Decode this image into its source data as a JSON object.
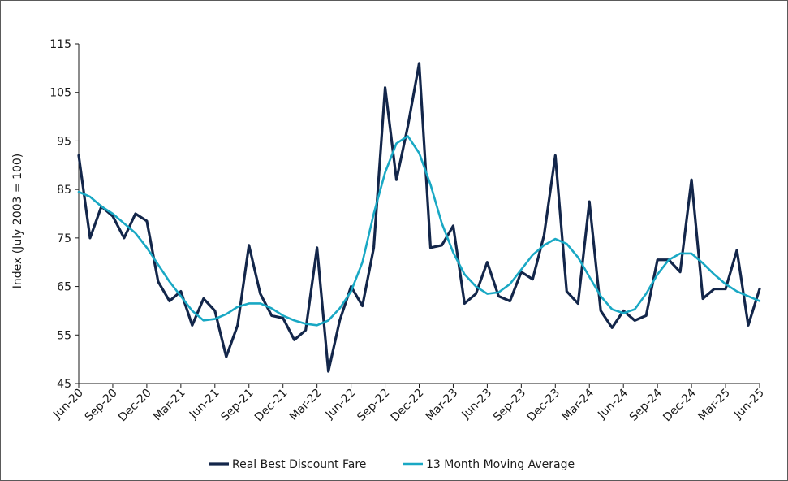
{
  "chart_data": {
    "type": "line",
    "title": "",
    "ylabel": "Index (July 2003 = 100)",
    "xlabel": "",
    "ylim": [
      45,
      115
    ],
    "yticks": [
      45,
      55,
      65,
      75,
      85,
      95,
      105,
      115
    ],
    "xtick_labels": [
      "Jun-20",
      "Sep-20",
      "Dec-20",
      "Mar-21",
      "Jun-21",
      "Sep-21",
      "Dec-21",
      "Mar-22",
      "Jun-22",
      "Sep-22",
      "Dec-22",
      "Mar-23",
      "Jun-23",
      "Sep-23",
      "Dec-23",
      "Mar-24",
      "Jun-24",
      "Sep-24",
      "Dec-24",
      "Mar-25",
      "Jun-25"
    ],
    "legend_position": "bottom",
    "series": [
      {
        "name": "Real Best Discount Fare",
        "color": "#13264a",
        "values": [
          92,
          75,
          81.5,
          79.5,
          75,
          80,
          78.5,
          66,
          62,
          64,
          57,
          62.5,
          60,
          50.5,
          57,
          73.5,
          63.5,
          59,
          58.5,
          54,
          56,
          73,
          47.5,
          58,
          65,
          61,
          73,
          106,
          87,
          98,
          111,
          73,
          73.5,
          77.5,
          61.5,
          63.5,
          70,
          63,
          62,
          68,
          66.5,
          75.5,
          92,
          64,
          61.5,
          82.5,
          60,
          56.5,
          60,
          58,
          59,
          70.5,
          70.5,
          68,
          87,
          62.5,
          64.5,
          64.5,
          72.5,
          57,
          64.5
        ]
      },
      {
        "name": "13 Month Moving Average",
        "color": "#19a8c4",
        "values": [
          84.5,
          83.5,
          81.5,
          80,
          78,
          76,
          73,
          69.5,
          66,
          63,
          60,
          58,
          58.3,
          59.3,
          60.8,
          61.5,
          61.5,
          60.5,
          59,
          58,
          57.3,
          57,
          58,
          60.5,
          64,
          70,
          80,
          88.5,
          94.5,
          96,
          92.5,
          86,
          78,
          72,
          67.5,
          65,
          63.5,
          63.8,
          65.5,
          68.5,
          71.5,
          73.5,
          74.8,
          73.8,
          71,
          67,
          63,
          60.3,
          59.5,
          60.3,
          63.5,
          67.5,
          70.5,
          71.8,
          71.8,
          69.8,
          67.5,
          65.5,
          64,
          63,
          62
        ]
      }
    ]
  }
}
